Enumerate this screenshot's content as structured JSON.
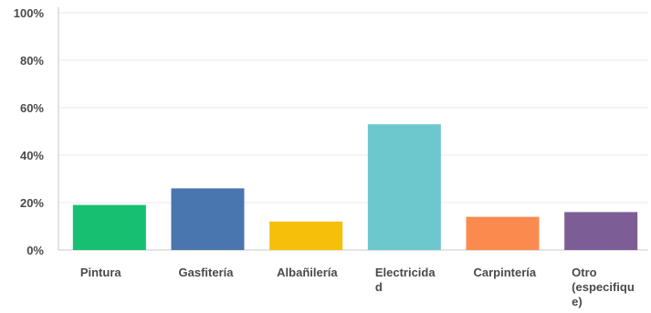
{
  "chart_data": {
    "type": "bar",
    "categories": [
      "Pintura",
      "Gasfitería",
      "Albañilería",
      "Electricidad",
      "Carpintería",
      "Otro (especifique)"
    ],
    "category_label_lines": [
      [
        "Pintura"
      ],
      [
        "Gasfitería"
      ],
      [
        "Albañilería"
      ],
      [
        "Electricida",
        "d"
      ],
      [
        "Carpintería"
      ],
      [
        "Otro",
        "(especifiqu",
        "e)"
      ]
    ],
    "values": [
      19,
      26,
      12,
      53,
      14,
      16
    ],
    "colors": [
      "#17bf71",
      "#4a76b0",
      "#f5bf0a",
      "#6cc8cc",
      "#fb8a4f",
      "#7c5d96"
    ],
    "y_ticks": [
      "0%",
      "20%",
      "40%",
      "60%",
      "80%",
      "100%"
    ],
    "ylim": [
      0,
      100
    ],
    "grid": true,
    "grid_color": "#e8e8e8"
  }
}
